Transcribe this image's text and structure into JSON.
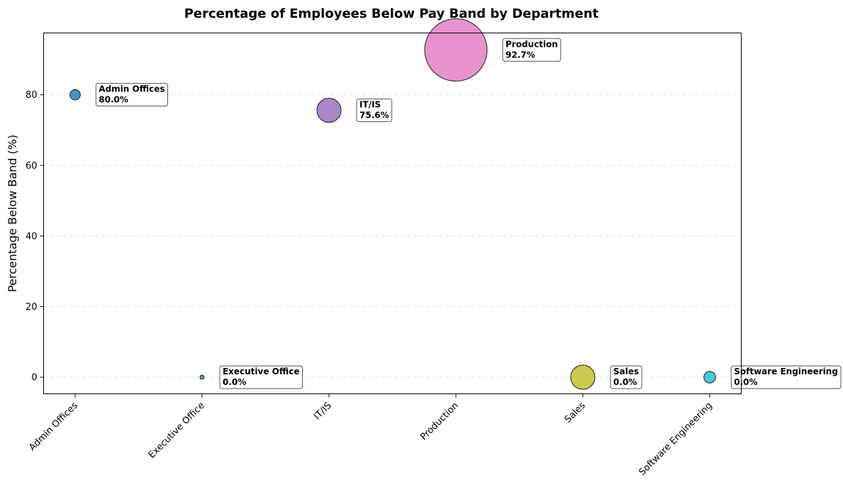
{
  "chart_data": {
    "type": "scatter",
    "title": "Percentage of Employees Below Pay Band by Department",
    "xlabel": "",
    "ylabel": "Percentage Below Band (%)",
    "categories": [
      "Admin Offices",
      "Executive Office",
      "IT/IS",
      "Production",
      "Sales",
      "Software Engineering"
    ],
    "values": [
      80.0,
      0.0,
      75.6,
      92.7,
      0.0,
      0.0
    ],
    "annotations": [
      {
        "name": "Admin Offices",
        "value": "80.0%"
      },
      {
        "name": "Executive Office",
        "value": "0.0%"
      },
      {
        "name": "IT/IS",
        "value": "75.6%"
      },
      {
        "name": "Production",
        "value": "92.7%"
      },
      {
        "name": "Sales",
        "value": "0.0%"
      },
      {
        "name": "Software Engineering",
        "value": "0.0%"
      }
    ],
    "colors": [
      "#1f77b4",
      "#2ca02c",
      "#9467bd",
      "#e377c2",
      "#bcbd22",
      "#17becf"
    ],
    "relative_sizes": [
      0.11,
      0.018,
      0.6,
      4.0,
      0.6,
      0.14
    ],
    "ylim": [
      -4.7,
      97.5
    ],
    "yticks": [
      0,
      20,
      40,
      60,
      80
    ],
    "grid": "y-dashed",
    "legend": "none"
  }
}
